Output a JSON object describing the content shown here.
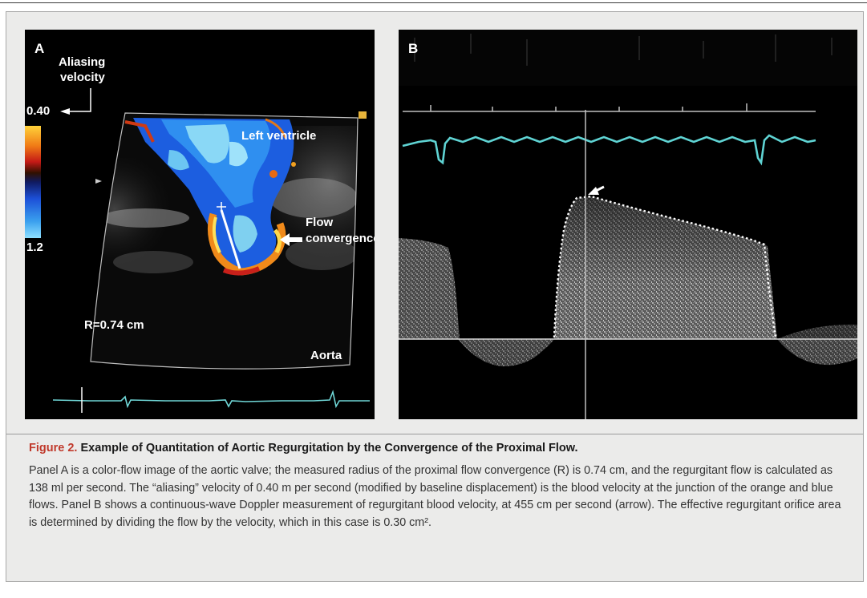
{
  "panel_a": {
    "letter": "A",
    "aliasing_label_line1": "Aliasing",
    "aliasing_label_line2": "velocity",
    "scale_top": "0.40",
    "scale_bottom": "1.2",
    "label_left_ventricle": "Left ventricle",
    "label_flow_line1": "Flow",
    "label_flow_line2": "convergence",
    "label_radius": "R=0.74 cm",
    "label_aorta": "Aorta",
    "colors": {
      "orange": "#f08a1a",
      "yellow": "#ffe05a",
      "red": "#c8201a",
      "blue": "#1e73e8",
      "cyan": "#7fd0f0",
      "ecg": "#6fd6d6"
    }
  },
  "panel_b": {
    "letter": "B",
    "colors": {
      "ecg": "#5fd3d3",
      "spectrum": "#d8d8d8",
      "dots": "#ffffff"
    }
  },
  "caption": {
    "figure_number": "Figure 2.",
    "title": "Example of Quantitation of Aortic Regurgitation by the Convergence of the Proximal Flow.",
    "body": "Panel A is a color-flow image of the aortic valve; the measured radius of the proximal flow convergence (R) is 0.74 cm, and the regurgitant flow is calculated as 138 ml per second. The “aliasing” velocity of 0.40 m per second (modified by baseline displacement) is the blood velocity at the junction of the orange and blue flows. Panel B shows a continuous-wave Doppler measurement of regurgitant blood velocity, at 455 cm per second (arrow). The effective regurgitant orifice area is determined by dividing the flow by the velocity, which in this case is 0.30 cm²."
  }
}
